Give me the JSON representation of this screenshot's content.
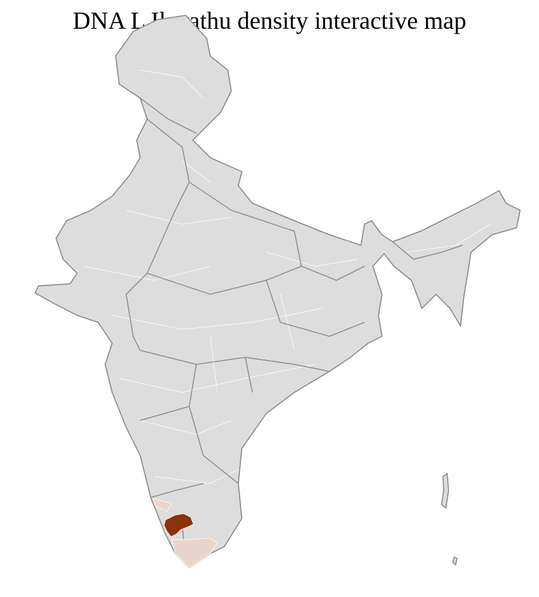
{
  "title": "DNA L Ilayathu density interactive map",
  "map": {
    "region": "India",
    "colors": {
      "base_fill": "#dddddd",
      "district_border": "#ffffff",
      "state_border": "#888888",
      "low_density": "#ead5cc",
      "high_density": "#8b3209"
    }
  }
}
